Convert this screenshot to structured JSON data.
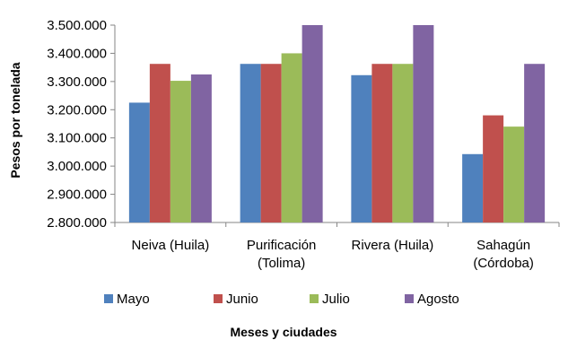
{
  "chart_data": {
    "type": "bar",
    "title": "",
    "xlabel": "Meses y ciudades",
    "ylabel": "Pesos por tonelada",
    "ylim": [
      2800000,
      3500000
    ],
    "yticks": [
      2800000,
      2900000,
      3000000,
      3100000,
      3200000,
      3300000,
      3400000,
      3500000
    ],
    "ytick_labels": [
      "2.800.000",
      "2.900.000",
      "3.000.000",
      "3.100.000",
      "3.200.000",
      "3.300.000",
      "3.400.000",
      "3.500.000"
    ],
    "categories": [
      [
        "Neiva (Huila)"
      ],
      [
        "Purificación",
        "(Tolima)"
      ],
      [
        "Rivera (Huila)"
      ],
      [
        "Sahagún",
        "(Córdoba)"
      ]
    ],
    "series": [
      {
        "name": "Mayo",
        "color": "#4F81BD",
        "values": [
          3225000,
          3362500,
          3322500,
          3042500
        ]
      },
      {
        "name": "Junio",
        "color": "#C0504D",
        "values": [
          3362500,
          3362500,
          3362500,
          3180000
        ]
      },
      {
        "name": "Julio",
        "color": "#9BBB59",
        "values": [
          3302500,
          3400000,
          3362500,
          3140000
        ]
      },
      {
        "name": "Agosto",
        "color": "#8064A2",
        "values": [
          3325000,
          3500000,
          3500000,
          3362500
        ]
      }
    ],
    "grid": false,
    "legend_position": "bottom"
  }
}
